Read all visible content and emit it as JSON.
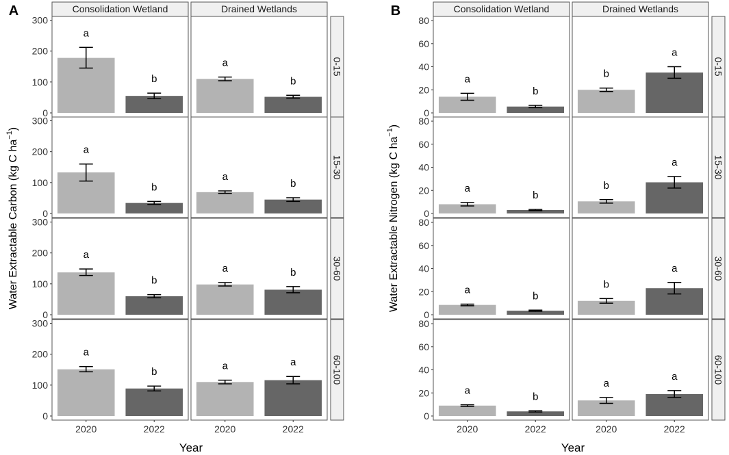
{
  "chart_data": [
    {
      "type": "bar",
      "panel_label": "A",
      "ylabel_main": "Water Extractable Carbon (kg C ha",
      "ylabel_sup": "−1",
      "ylabel_close": ")",
      "xlabel": "Year",
      "facet_cols": [
        "Consolidation Wetland",
        "Drained Wetlands"
      ],
      "facet_rows": [
        "0-15",
        "15-30",
        "30-60",
        "60-100"
      ],
      "categories": [
        "2020",
        "2022"
      ],
      "ylim": [
        0,
        310
      ],
      "yticks": [
        0,
        100,
        200,
        300
      ],
      "series": [
        {
          "name": "2020",
          "color": "#b3b3b3"
        },
        {
          "name": "2022",
          "color": "#666666"
        }
      ],
      "panels": [
        [
          {
            "values": [
              178,
              55
            ],
            "errors": [
              [
                145,
                212
              ],
              [
                46,
                64
              ]
            ],
            "labels": [
              "a",
              "b"
            ]
          },
          {
            "values": [
              110,
              52
            ],
            "errors": [
              [
                104,
                116
              ],
              [
                48,
                57
              ]
            ],
            "labels": [
              "a",
              "b"
            ]
          }
        ],
        [
          {
            "values": [
              133,
              34
            ],
            "errors": [
              [
                105,
                160
              ],
              [
                29,
                39
              ]
            ],
            "labels": [
              "a",
              "b"
            ]
          },
          {
            "values": [
              69,
              45
            ],
            "errors": [
              [
                65,
                73
              ],
              [
                39,
                51
              ]
            ],
            "labels": [
              "a",
              "b"
            ]
          }
        ],
        [
          {
            "values": [
              137,
              60
            ],
            "errors": [
              [
                127,
                148
              ],
              [
                55,
                65
              ]
            ],
            "labels": [
              "a",
              "b"
            ]
          },
          {
            "values": [
              98,
              81
            ],
            "errors": [
              [
                93,
                104
              ],
              [
                71,
                91
              ]
            ],
            "labels": [
              "a",
              "b"
            ]
          }
        ],
        [
          {
            "values": [
              151,
              89
            ],
            "errors": [
              [
                143,
                160
              ],
              [
                81,
                97
              ]
            ],
            "labels": [
              "a",
              "b"
            ]
          },
          {
            "values": [
              110,
              116
            ],
            "errors": [
              [
                104,
                116
              ],
              [
                104,
                128
              ]
            ],
            "labels": [
              "a",
              "a"
            ]
          }
        ]
      ]
    },
    {
      "type": "bar",
      "panel_label": "B",
      "ylabel_main": "Water Extractable Nitrogen (kg C ha",
      "ylabel_sup": "−1",
      "ylabel_close": ")",
      "xlabel": "Year",
      "facet_cols": [
        "Consolidation Wetland",
        "Drained Wetlands"
      ],
      "facet_rows": [
        "0-15",
        "15-30",
        "30-60",
        "60-100"
      ],
      "categories": [
        "2020",
        "2022"
      ],
      "ylim": [
        0,
        83
      ],
      "yticks": [
        0,
        20,
        40,
        60,
        80
      ],
      "series": [
        {
          "name": "2020",
          "color": "#b3b3b3"
        },
        {
          "name": "2022",
          "color": "#666666"
        }
      ],
      "panels": [
        [
          {
            "values": [
              14,
              5.5
            ],
            "errors": [
              [
                11,
                17
              ],
              [
                4.5,
                6.5
              ]
            ],
            "labels": [
              "a",
              "b"
            ]
          },
          {
            "values": [
              20,
              35
            ],
            "errors": [
              [
                18.5,
                21.5
              ],
              [
                30,
                40
              ]
            ],
            "labels": [
              "b",
              "a"
            ]
          }
        ],
        [
          {
            "values": [
              8,
              3
            ],
            "errors": [
              [
                6.5,
                9.5
              ],
              [
                2.5,
                3.5
              ]
            ],
            "labels": [
              "a",
              "b"
            ]
          },
          {
            "values": [
              10.5,
              27
            ],
            "errors": [
              [
                9,
                12
              ],
              [
                22,
                32
              ]
            ],
            "labels": [
              "b",
              "a"
            ]
          }
        ],
        [
          {
            "values": [
              8.5,
              3.5
            ],
            "errors": [
              [
                7.8,
                9.2
              ],
              [
                3,
                4
              ]
            ],
            "labels": [
              "a",
              "b"
            ]
          },
          {
            "values": [
              12,
              23
            ],
            "errors": [
              [
                10,
                14
              ],
              [
                18,
                28
              ]
            ],
            "labels": [
              "b",
              "a"
            ]
          }
        ],
        [
          {
            "values": [
              9,
              4
            ],
            "errors": [
              [
                8.3,
                9.7
              ],
              [
                3.5,
                4.5
              ]
            ],
            "labels": [
              "a",
              "b"
            ]
          },
          {
            "values": [
              13.5,
              19
            ],
            "errors": [
              [
                11,
                16
              ],
              [
                16,
                22
              ]
            ],
            "labels": [
              "a",
              "a"
            ]
          }
        ]
      ]
    }
  ]
}
